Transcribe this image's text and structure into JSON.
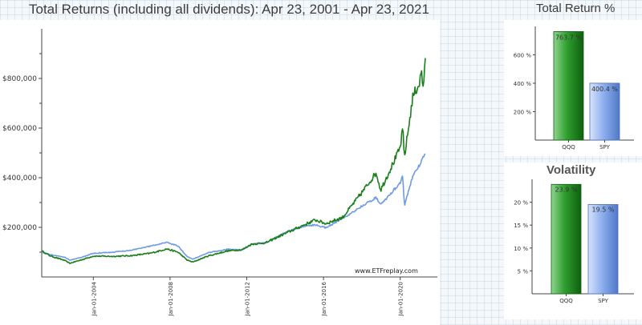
{
  "header": {
    "main_title": "Total Returns (including all dividends): Apr 23, 2001 - Apr 23, 2021",
    "return_title": "Total Return %",
    "volatility_title": "Volatility"
  },
  "watermark": "www.ETFreplay.com",
  "colors": {
    "QQQ": "#1a7f1a",
    "SPY": "#6f9ae6"
  },
  "chart_data": [
    {
      "type": "line",
      "title": "Total Returns (including all dividends): Apr 23, 2001 - Apr 23, 2021",
      "x_ticks": [
        "Jan-01-2004",
        "Jan-01-2008",
        "Jan-01-2012",
        "Jan-01-2016",
        "Jan-01-2020"
      ],
      "y_ticks": [
        "$200,000",
        "$400,000",
        "$600,000",
        "$800,000"
      ],
      "ylim": [
        0,
        1000000
      ],
      "xlim": [
        "2001-04-23",
        "2021-04-23"
      ],
      "series": [
        {
          "name": "QQQ",
          "x": [
            "2001-04-23",
            "2001-10-01",
            "2002-07-01",
            "2002-10-09",
            "2003-06-01",
            "2004-01-01",
            "2005-01-01",
            "2006-01-01",
            "2007-01-01",
            "2007-10-31",
            "2008-06-01",
            "2008-11-20",
            "2009-03-09",
            "2009-12-31",
            "2010-12-31",
            "2011-10-03",
            "2012-03-31",
            "2012-12-31",
            "2013-12-31",
            "2014-12-31",
            "2015-07-31",
            "2016-02-11",
            "2016-12-31",
            "2017-12-31",
            "2018-09-30",
            "2018-12-24",
            "2019-12-31",
            "2020-02-19",
            "2020-03-20",
            "2020-08-31",
            "2020-12-31",
            "2021-02-12",
            "2021-03-08",
            "2021-04-23"
          ],
          "values": [
            105000,
            85000,
            67000,
            55000,
            70000,
            84000,
            83000,
            86000,
            96000,
            113000,
            100000,
            68000,
            60000,
            85000,
            105000,
            110000,
            132000,
            138000,
            175000,
            210000,
            230000,
            215000,
            240000,
            340000,
            420000,
            350000,
            520000,
            600000,
            480000,
            730000,
            780000,
            830000,
            760000,
            860000
          ]
        },
        {
          "name": "SPY",
          "x": [
            "2001-04-23",
            "2001-10-01",
            "2002-07-01",
            "2002-10-09",
            "2003-06-01",
            "2004-01-01",
            "2005-01-01",
            "2006-01-01",
            "2007-01-01",
            "2007-10-31",
            "2008-06-01",
            "2008-11-20",
            "2009-03-09",
            "2009-12-31",
            "2010-12-31",
            "2011-10-03",
            "2012-03-31",
            "2012-12-31",
            "2013-12-31",
            "2014-12-31",
            "2015-07-31",
            "2016-02-11",
            "2016-12-31",
            "2017-12-31",
            "2018-09-30",
            "2018-12-24",
            "2019-12-31",
            "2020-02-19",
            "2020-03-20",
            "2020-08-31",
            "2020-12-31",
            "2021-04-23"
          ],
          "values": [
            100000,
            90000,
            80000,
            68000,
            80000,
            95000,
            100000,
            108000,
            125000,
            140000,
            125000,
            82000,
            72000,
            98000,
            112000,
            108000,
            132000,
            138000,
            180000,
            205000,
            210000,
            198000,
            235000,
            285000,
            320000,
            290000,
            380000,
            410000,
            285000,
            410000,
            450000,
            500000
          ]
        }
      ]
    },
    {
      "type": "bar",
      "title": "Total Return %",
      "categories": [
        "QQQ",
        "SPY"
      ],
      "values": [
        763.7,
        400.4
      ],
      "labels": [
        "763.7 %",
        "400.4 %"
      ],
      "y_ticks": [
        "200 %",
        "400 %",
        "600 %"
      ],
      "ylim": [
        0,
        800
      ]
    },
    {
      "type": "bar",
      "title": "Volatility",
      "categories": [
        "QQQ",
        "SPY"
      ],
      "values": [
        23.9,
        19.5
      ],
      "labels": [
        "23.9 %",
        "19.5 %"
      ],
      "y_ticks": [
        "5 %",
        "10 %",
        "15 %",
        "20 %"
      ],
      "ylim": [
        0,
        25
      ]
    }
  ]
}
